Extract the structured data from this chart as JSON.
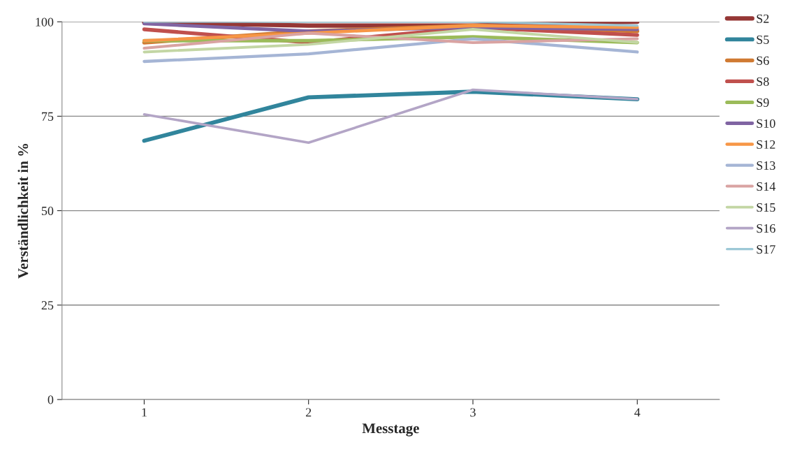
{
  "chart_data": {
    "type": "line",
    "xlabel": "Messtage",
    "ylabel": "Verständlichkeit in %",
    "x": [
      1,
      2,
      3,
      4
    ],
    "xlim": [
      0.5,
      4.5
    ],
    "xticks": [
      1,
      2,
      3,
      4
    ],
    "ylim": [
      0,
      100
    ],
    "yticks": [
      0,
      25,
      50,
      75,
      100
    ],
    "grid": "y",
    "legend": "right",
    "marker": "none",
    "line_style": "solid",
    "series": [
      {
        "name": "S2",
        "color": "#953735",
        "values": [
          99.8,
          99,
          99,
          100
        ]
      },
      {
        "name": "S5",
        "color": "#31859c",
        "values": [
          68.5,
          80,
          81.5,
          79.5
        ]
      },
      {
        "name": "S6",
        "color": "#d07a32",
        "values": [
          94.5,
          97.5,
          99,
          97.5
        ]
      },
      {
        "name": "S8",
        "color": "#c0504d",
        "values": [
          98,
          94.5,
          98.5,
          96.5
        ]
      },
      {
        "name": "S9",
        "color": "#9bbb59",
        "values": [
          95,
          95,
          96,
          94.5
        ]
      },
      {
        "name": "S10",
        "color": "#8064a2",
        "values": [
          99.5,
          97.5,
          98.5,
          98
        ]
      },
      {
        "name": "S12",
        "color": "#f79646",
        "values": [
          95,
          97,
          99,
          98.5
        ]
      },
      {
        "name": "S13",
        "color": "#a5b5d5",
        "values": [
          89.5,
          91.5,
          95.5,
          92
        ]
      },
      {
        "name": "S14",
        "color": "#d9a3a2",
        "values": [
          93,
          97,
          94.5,
          95.5
        ]
      },
      {
        "name": "S15",
        "color": "#c3d6a4",
        "values": [
          92,
          94,
          98,
          94.5
        ]
      },
      {
        "name": "S16",
        "color": "#b3a5c6",
        "values": [
          75.5,
          68,
          82,
          79.5
        ]
      },
      {
        "name": "S17",
        "color": "#9dc8d6",
        "values": [
          100,
          100,
          100,
          99
        ]
      }
    ]
  }
}
